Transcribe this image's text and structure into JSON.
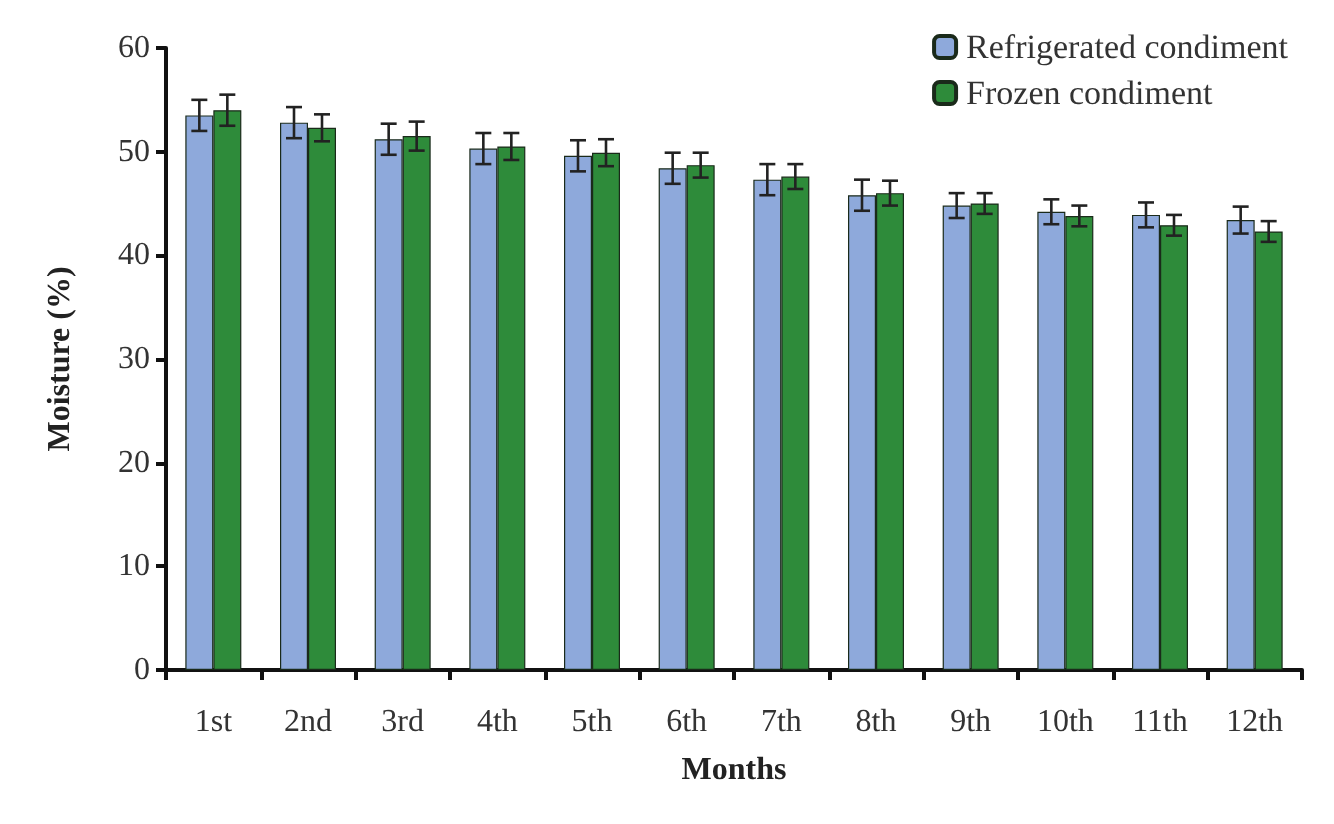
{
  "chart_data": {
    "type": "bar",
    "xlabel": "Months",
    "ylabel": "Moisture (%)",
    "categories": [
      "1st",
      "2nd",
      "3rd",
      "4th",
      "5th",
      "6th",
      "7th",
      "8th",
      "9th",
      "10th",
      "11th",
      "12th"
    ],
    "series": [
      {
        "name": "Refrigerated condiment",
        "color": "#8ea9db",
        "values": [
          53.5,
          52.8,
          51.2,
          50.3,
          49.6,
          48.4,
          47.3,
          45.8,
          44.8,
          44.2,
          43.9,
          43.4
        ],
        "errors": [
          1.5,
          1.5,
          1.5,
          1.5,
          1.5,
          1.5,
          1.5,
          1.5,
          1.2,
          1.2,
          1.2,
          1.3
        ]
      },
      {
        "name": "Frozen condiment",
        "color": "#2e8b3a",
        "values": [
          54,
          52.3,
          51.5,
          50.5,
          49.9,
          48.7,
          47.6,
          46,
          45,
          43.8,
          42.9,
          42.3
        ],
        "errors": [
          1.5,
          1.3,
          1.4,
          1.3,
          1.3,
          1.2,
          1.2,
          1.2,
          1.0,
          1.0,
          1.0,
          1.0
        ]
      }
    ],
    "ylim": [
      0,
      60
    ],
    "yticks": [
      0,
      10,
      20,
      30,
      40,
      50,
      60
    ],
    "grid": false,
    "legend": "top right"
  }
}
